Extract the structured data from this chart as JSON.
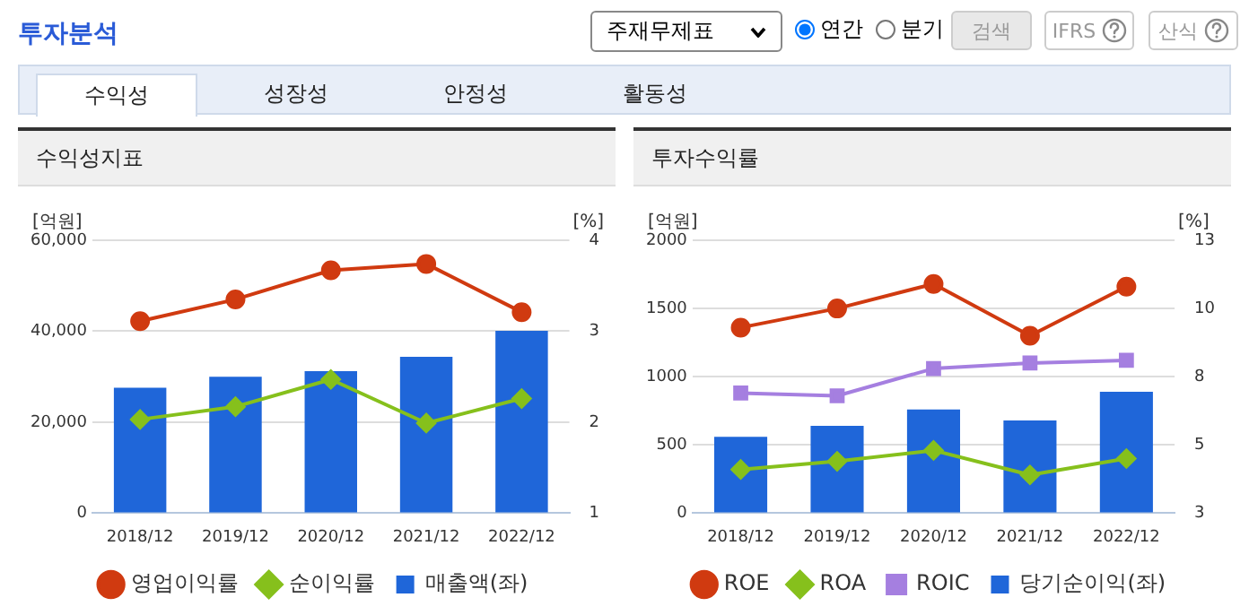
{
  "chart_data": [
    {
      "type": "other",
      "title": "투자분석",
      "annotations": [
        "주재무제표",
        "연간",
        "분기",
        "검색",
        "IFRS",
        "산식",
        "수익성",
        "성장성",
        "안정성",
        "활동성"
      ]
    },
    {
      "type": "bar",
      "title": "수익성지표",
      "ylabel": "[억원]",
      "y2label": "[%]",
      "categories": [
        "2018/12",
        "2019/12",
        "2020/12",
        "2021/12",
        "2022/12"
      ],
      "series": [
        {
          "name": "매출액(좌)",
          "type": "bar",
          "color": "#1f66d9",
          "values": [
            27600,
            30000,
            31200,
            34400,
            40100
          ]
        },
        {
          "name": "영업이익률",
          "type": "line",
          "axis": "y2",
          "color": "#d03a10",
          "marker": "circle",
          "values": [
            3.11,
            3.35,
            3.67,
            3.74,
            3.21
          ]
        },
        {
          "name": "순이익률",
          "type": "line",
          "axis": "y2",
          "color": "#86c01c",
          "marker": "diamond",
          "values": [
            2.03,
            2.17,
            2.47,
            1.99,
            2.26
          ]
        }
      ],
      "ylim": [
        0,
        60000
      ],
      "yticks": [
        0,
        {
          "value": 20000,
          "label": "20,000"
        },
        {
          "value": 40000,
          "label": "40,000"
        },
        {
          "value": 60000,
          "label": "60,000"
        }
      ],
      "y2lim": [
        1,
        4
      ],
      "y2ticks": [
        1,
        2,
        3,
        4
      ],
      "grid": "y",
      "legend": "bottom"
    },
    {
      "type": "bar",
      "title": "투자수익률",
      "ylabel": "[억원]",
      "y2label": "[%]",
      "categories": [
        "2018/12",
        "2019/12",
        "2020/12",
        "2021/12",
        "2022/12"
      ],
      "series": [
        {
          "name": "당기순이익(좌)",
          "type": "bar",
          "color": "#1f66d9",
          "values": [
            560,
            640,
            760,
            680,
            890
          ]
        },
        {
          "name": "ROE",
          "type": "line",
          "axis": "y2",
          "color": "#d03a10",
          "marker": "circle",
          "values": [
            9.8,
            10.5,
            11.4,
            9.5,
            11.3
          ]
        },
        {
          "name": "ROA",
          "type": "line",
          "axis": "y2",
          "color": "#86c01c",
          "marker": "diamond",
          "values": [
            4.6,
            4.9,
            5.3,
            4.4,
            5.0
          ]
        },
        {
          "name": "ROIC",
          "type": "line",
          "axis": "y2",
          "color": "#a57fe0",
          "marker": "square",
          "values": [
            7.4,
            7.3,
            8.3,
            8.5,
            8.6
          ]
        }
      ],
      "ylim": [
        0,
        2000
      ],
      "yticks": [
        0,
        500,
        1000,
        1500,
        2000
      ],
      "y2lim": [
        3,
        13
      ],
      "y2ticks": [
        3,
        {
          "value": 5.5,
          "label": "5"
        },
        8,
        {
          "value": 10.5,
          "label": "10"
        },
        13
      ],
      "grid": "y",
      "legend": "bottom"
    }
  ]
}
